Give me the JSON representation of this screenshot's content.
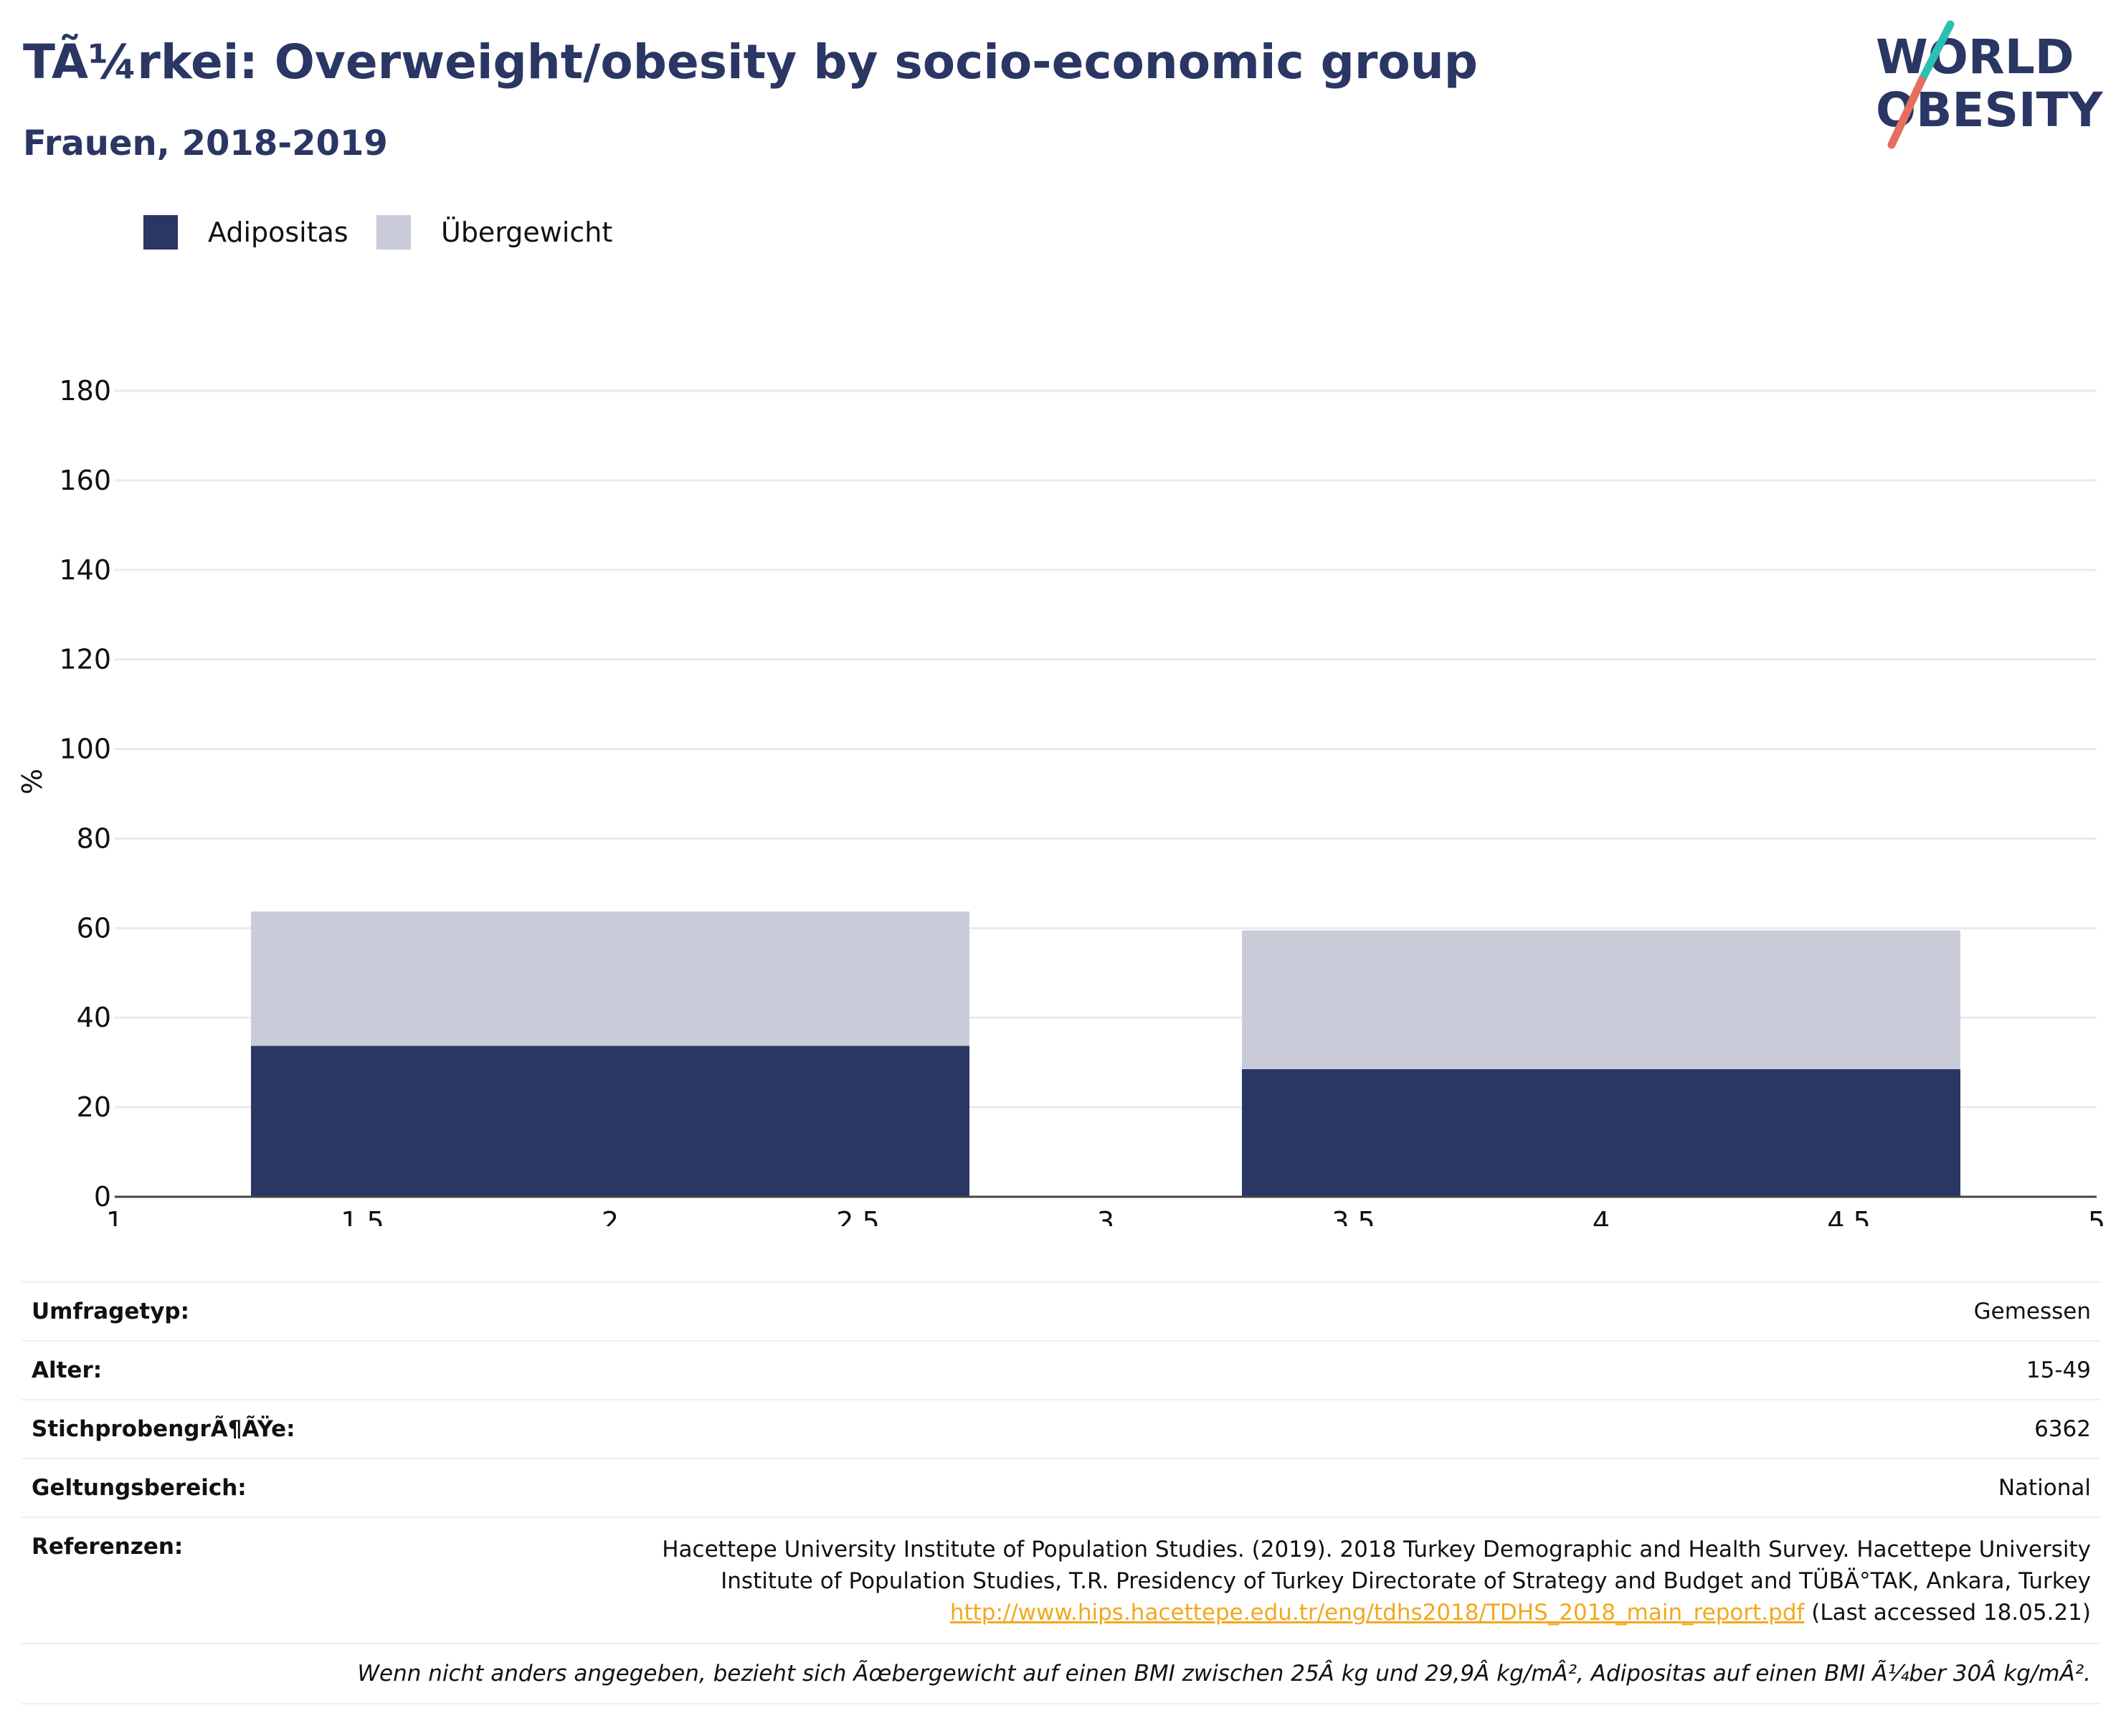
{
  "title": "TÃ¼rkei: Overweight/obesity by socio-economic group",
  "subtitle": "Frauen, 2018-2019",
  "logo": {
    "line1": "WORLD",
    "line2": "OBESITY"
  },
  "colors": {
    "text": "#2a3663",
    "obesity": "#2a3663",
    "overweight": "#c9ccd8",
    "grid": "#e9eaef",
    "logo_teal": "#2cbfb4",
    "logo_coral": "#e56e5d",
    "link": "#f2a81d"
  },
  "chart_data": {
    "type": "bar",
    "stacked": true,
    "title": "",
    "xlabel": "",
    "ylabel": "%",
    "xlim": [
      1,
      5
    ],
    "ylim": [
      0,
      180
    ],
    "x_ticks": [
      "1",
      "1.5",
      "2",
      "2.5",
      "3",
      "3.5",
      "4",
      "4.5",
      "5"
    ],
    "y_ticks": [
      "0",
      "20",
      "40",
      "60",
      "80",
      "100",
      "120",
      "140",
      "160",
      "180"
    ],
    "grid": true,
    "legend_position": "top-left",
    "bar_width": 1.45,
    "x": [
      2,
      4
    ],
    "series": [
      {
        "name": "Adipositas",
        "color": "#2a3663",
        "values": [
          33.7,
          28.5
        ]
      },
      {
        "name": "Übergewicht",
        "color": "#c9ccd8",
        "values": [
          30.0,
          31.0
        ]
      }
    ]
  },
  "info": {
    "rows": [
      {
        "label": "Umfragetyp:",
        "value": "Gemessen"
      },
      {
        "label": "Alter:",
        "value": "15-49"
      },
      {
        "label": "StichprobengrÃ¶ÃŸe:",
        "value": "6362"
      },
      {
        "label": "Geltungsbereich:",
        "value": "National"
      }
    ],
    "references_label": "Referenzen:",
    "references_line1": "Hacettepe University Institute of Population Studies. (2019). 2018 Turkey Demographic and Health Survey. Hacettepe University",
    "references_line2": "Institute of Population Studies, T.R. Presidency of Turkey Directorate of Strategy and Budget and TÜBÄ°TAK, Ankara, Turkey",
    "references_link": "http://www.hips.hacettepe.edu.tr/eng/tdhs2018/TDHS_2018_main_report.pdf",
    "references_accessed": " (Last accessed 18.05.21)",
    "note": "Wenn nicht anders angegeben, bezieht sich Ãœbergewicht auf einen BMI zwischen 25Â kg und 29,9Â kg/mÂ², Adipositas auf einen BMI Ã¼ber 30Â kg/mÂ²."
  }
}
